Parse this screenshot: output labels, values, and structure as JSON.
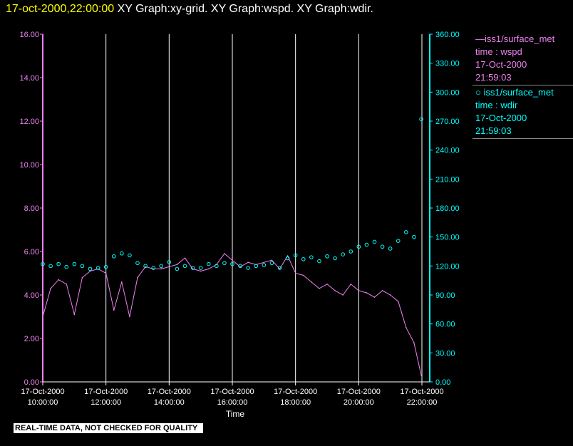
{
  "header": {
    "timestamp": "17-oct-2000,22:00:00",
    "title": "XY Graph:xy-grid.  XY Graph:wspd.  XY Graph:wdir."
  },
  "colors": {
    "wspd": "#ee82ee",
    "wdir": "#00ffff",
    "grid": "#ffffff",
    "background": "#000000"
  },
  "chart_data": {
    "type": "line",
    "xlabel": "Time",
    "x_range": [
      "2000-10-17 10:00",
      "2000-10-17 22:00"
    ],
    "x_ticks": [
      {
        "date": "17-Oct-2000",
        "time": "10:00:00"
      },
      {
        "date": "17-Oct-2000",
        "time": "12:00:00"
      },
      {
        "date": "17-Oct-2000",
        "time": "14:00:00"
      },
      {
        "date": "17-Oct-2000",
        "time": "16:00:00"
      },
      {
        "date": "17-Oct-2000",
        "time": "18:00:00"
      },
      {
        "date": "17-Oct-2000",
        "time": "20:00:00"
      },
      {
        "date": "17-Oct-2000",
        "time": "22:00:00"
      }
    ],
    "y_left": {
      "ylim": [
        0,
        16
      ],
      "ticks": [
        "0.00",
        "2.00",
        "4.00",
        "6.00",
        "8.00",
        "10.00",
        "12.00",
        "14.00",
        "16.00"
      ]
    },
    "y_right": {
      "ylim": [
        0,
        360
      ],
      "ticks": [
        "0.00",
        "30.00",
        "60.00",
        "90.00",
        "120.00",
        "150.00",
        "180.00",
        "210.00",
        "240.00",
        "270.00",
        "300.00",
        "330.00",
        "360.00"
      ]
    },
    "series": [
      {
        "name": "iss1/surface_met",
        "variable": "time : wspd",
        "last_date": "17-Oct-2000",
        "last_time": "21:59:03",
        "style": "line",
        "axis": "left",
        "x_hours": [
          10.0,
          10.25,
          10.5,
          10.75,
          11.0,
          11.25,
          11.5,
          11.75,
          12.0,
          12.25,
          12.5,
          12.75,
          13.0,
          13.25,
          13.5,
          13.75,
          14.0,
          14.25,
          14.5,
          14.75,
          15.0,
          15.25,
          15.5,
          15.75,
          16.0,
          16.25,
          16.5,
          16.75,
          17.0,
          17.25,
          17.5,
          17.75,
          18.0,
          18.25,
          18.5,
          18.75,
          19.0,
          19.25,
          19.5,
          19.75,
          20.0,
          20.25,
          20.5,
          20.75,
          21.0,
          21.25,
          21.5,
          21.75,
          21.98
        ],
        "values": [
          3.0,
          4.3,
          4.7,
          4.5,
          3.1,
          4.8,
          5.1,
          5.2,
          5.0,
          3.3,
          4.6,
          3.0,
          4.8,
          5.3,
          5.2,
          5.2,
          5.3,
          5.4,
          5.7,
          5.2,
          5.1,
          5.2,
          5.4,
          5.9,
          5.6,
          5.3,
          5.5,
          5.4,
          5.5,
          5.6,
          5.2,
          5.8,
          5.0,
          4.9,
          4.6,
          4.3,
          4.5,
          4.2,
          4.0,
          4.5,
          4.2,
          4.1,
          3.9,
          4.2,
          4.0,
          3.7,
          2.5,
          1.8,
          0.3
        ]
      },
      {
        "name": "iss1/surface_met",
        "variable": "time : wdir",
        "last_date": "17-Oct-2000",
        "last_time": "21:59:03",
        "style": "scatter",
        "axis": "right",
        "x_hours": [
          10.0,
          10.25,
          10.5,
          10.75,
          11.0,
          11.25,
          11.5,
          11.75,
          12.0,
          12.25,
          12.5,
          12.75,
          13.0,
          13.25,
          13.5,
          13.75,
          14.0,
          14.25,
          14.5,
          14.75,
          15.0,
          15.25,
          15.5,
          15.75,
          16.0,
          16.25,
          16.5,
          16.75,
          17.0,
          17.25,
          17.5,
          17.75,
          18.0,
          18.25,
          18.5,
          18.75,
          19.0,
          19.25,
          19.5,
          19.75,
          20.0,
          20.25,
          20.5,
          20.75,
          21.0,
          21.25,
          21.5,
          21.75,
          21.98
        ],
        "values": [
          122,
          120,
          122,
          119,
          122,
          120,
          117,
          118,
          119,
          130,
          133,
          131,
          123,
          120,
          118,
          120,
          124,
          117,
          120,
          118,
          118,
          122,
          120,
          123,
          122,
          120,
          118,
          120,
          121,
          123,
          118,
          128,
          131,
          127,
          129,
          125,
          130,
          128,
          132,
          135,
          140,
          142,
          145,
          140,
          138,
          146,
          155,
          150,
          272
        ]
      }
    ]
  },
  "footer": {
    "qa_note": "REAL-TIME DATA, NOT CHECKED FOR QUALITY"
  }
}
